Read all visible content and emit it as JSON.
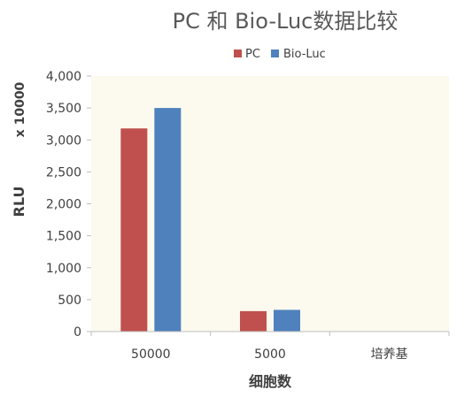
{
  "chart_data": {
    "type": "bar",
    "title": "PC 和 Bio-Luc数据比较",
    "xlabel": "细胞数",
    "ylabel": "RLU",
    "y_multiplier_label": "x 10000",
    "categories": [
      "50000",
      "5000",
      "培养基"
    ],
    "series": [
      {
        "name": "PC",
        "color": "#C0504D",
        "values": [
          3180,
          320,
          0
        ]
      },
      {
        "name": "Bio-Luc",
        "color": "#4F81BD",
        "values": [
          3500,
          340,
          0
        ]
      }
    ],
    "ylim": [
      0,
      4000
    ],
    "yticks": [
      0,
      500,
      1000,
      1500,
      2000,
      2500,
      3000,
      3500,
      4000
    ],
    "ytick_labels": [
      "0",
      "500",
      "1,000",
      "1,500",
      "2,000",
      "2,500",
      "3,000",
      "3,500",
      "4,000"
    ],
    "legend_position": "top",
    "grid": false,
    "plot_background": "#FCFAEE"
  }
}
